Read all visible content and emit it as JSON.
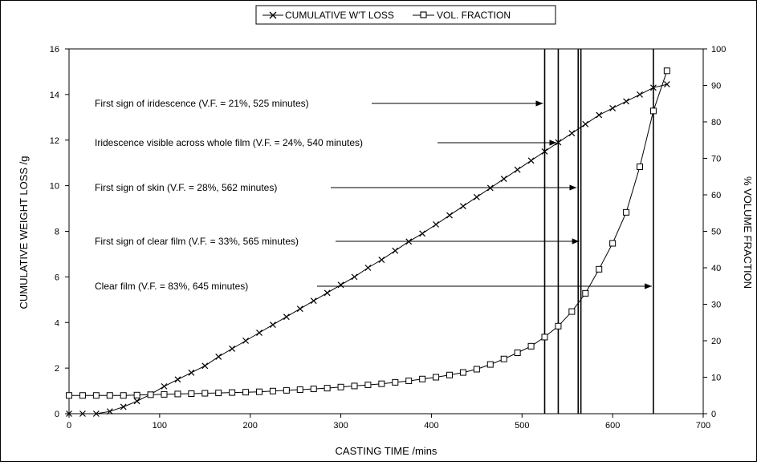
{
  "chart_data": {
    "type": "line",
    "legend": {
      "placement": "top-center",
      "entries": [
        {
          "label": "CUMULATIVE W'T LOSS",
          "marker": "x"
        },
        {
          "label": "VOL. FRACTION",
          "marker": "square"
        }
      ]
    },
    "xlabel": "CASTING TIME /mins",
    "ylabel": "CUMULATIVE WEIGHT LOSS /g",
    "y2label": "% VOLUME FRACTION",
    "xlim": [
      0,
      700
    ],
    "ylim": [
      0,
      16
    ],
    "y2lim": [
      0,
      100
    ],
    "xticks": [
      "0",
      "100",
      "200",
      "300",
      "400",
      "500",
      "600",
      "700"
    ],
    "yticks": [
      "0",
      "2",
      "4",
      "6",
      "8",
      "10",
      "12",
      "14",
      "16"
    ],
    "y2ticks": [
      "0",
      "10",
      "20",
      "30",
      "40",
      "50",
      "60",
      "70",
      "80",
      "90",
      "100"
    ],
    "grid": false,
    "series": [
      {
        "name": "CUMULATIVE W'T LOSS",
        "axis": "left",
        "x": [
          0,
          15,
          30,
          45,
          60,
          75,
          90,
          105,
          120,
          135,
          150,
          165,
          180,
          195,
          210,
          225,
          240,
          255,
          270,
          285,
          300,
          315,
          330,
          345,
          360,
          375,
          390,
          405,
          420,
          435,
          450,
          465,
          480,
          495,
          510,
          525,
          540,
          555,
          570,
          585,
          600,
          615,
          630,
          645,
          660
        ],
        "values": [
          0,
          0,
          0,
          0.1,
          0.3,
          0.55,
          0.85,
          1.2,
          1.5,
          1.8,
          2.1,
          2.5,
          2.85,
          3.2,
          3.55,
          3.9,
          4.25,
          4.6,
          4.95,
          5.3,
          5.65,
          6.0,
          6.4,
          6.75,
          7.15,
          7.55,
          7.9,
          8.3,
          8.7,
          9.1,
          9.5,
          9.9,
          10.3,
          10.7,
          11.1,
          11.5,
          11.9,
          12.3,
          12.7,
          13.1,
          13.4,
          13.7,
          14.0,
          14.3,
          14.45
        ]
      },
      {
        "name": "VOL. FRACTION",
        "axis": "right",
        "x": [
          0,
          15,
          30,
          45,
          60,
          75,
          90,
          105,
          120,
          135,
          150,
          165,
          180,
          195,
          210,
          225,
          240,
          255,
          270,
          285,
          300,
          315,
          330,
          345,
          360,
          375,
          390,
          405,
          420,
          435,
          450,
          465,
          480,
          495,
          510,
          525,
          540,
          555,
          570,
          585,
          600,
          615,
          630,
          645,
          660
        ],
        "values": [
          5,
          5,
          5,
          5,
          5,
          5.1,
          5.2,
          5.3,
          5.4,
          5.5,
          5.6,
          5.7,
          5.8,
          5.9,
          6.0,
          6.2,
          6.4,
          6.6,
          6.8,
          7.0,
          7.3,
          7.6,
          7.9,
          8.2,
          8.6,
          9.0,
          9.5,
          10.0,
          10.6,
          11.3,
          12.2,
          13.5,
          15.0,
          16.7,
          18.5,
          21,
          24,
          28,
          33,
          39.6,
          46.7,
          55.2,
          67.7,
          83,
          94
        ]
      }
    ],
    "vertical_lines_x": [
      525,
      540,
      562,
      565,
      645
    ],
    "annotations": [
      {
        "text": "First sign of iridescence (V.F. = 21%, 525 minutes)",
        "arrow_to_x": 525
      },
      {
        "text": "Iridescence visible across whole film (V.F. = 24%, 540 minutes)",
        "arrow_to_x": 540
      },
      {
        "text": "First sign of skin (V.F. = 28%, 562 minutes)",
        "arrow_to_x": 562
      },
      {
        "text": "First sign of clear film (V.F. = 33%, 565 minutes)",
        "arrow_to_x": 565
      },
      {
        "text": "Clear film (V.F. = 83%, 645 minutes)",
        "arrow_to_x": 645
      }
    ]
  }
}
